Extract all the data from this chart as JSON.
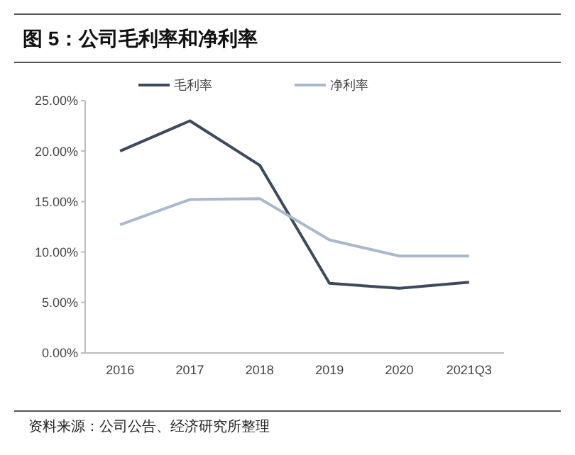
{
  "chart_data": {
    "type": "line",
    "title": "图 5：公司毛利率和净利率",
    "categories": [
      "2016",
      "2017",
      "2018",
      "2019",
      "2020",
      "2021Q3"
    ],
    "series": [
      {
        "name": "毛利率",
        "color": "#3d4a5e",
        "values": [
          20.0,
          23.0,
          18.6,
          6.9,
          6.4,
          7.0
        ]
      },
      {
        "name": "净利率",
        "color": "#a9b8cc",
        "values": [
          12.7,
          15.2,
          15.3,
          11.2,
          9.6,
          9.6
        ]
      }
    ],
    "ylim": [
      0,
      25
    ],
    "yticks": [
      {
        "value": 0,
        "label": "0.00%"
      },
      {
        "value": 5,
        "label": "5.00%"
      },
      {
        "value": 10,
        "label": "10.00%"
      },
      {
        "value": 15,
        "label": "15.00%"
      },
      {
        "value": 20,
        "label": "20.00%"
      },
      {
        "value": 25,
        "label": "25.00%"
      }
    ],
    "grid": false,
    "legend": "top",
    "marker": "none",
    "line_style": "solid",
    "annotations": [
      "资料来源：公司公告、经济研究所整理"
    ]
  }
}
